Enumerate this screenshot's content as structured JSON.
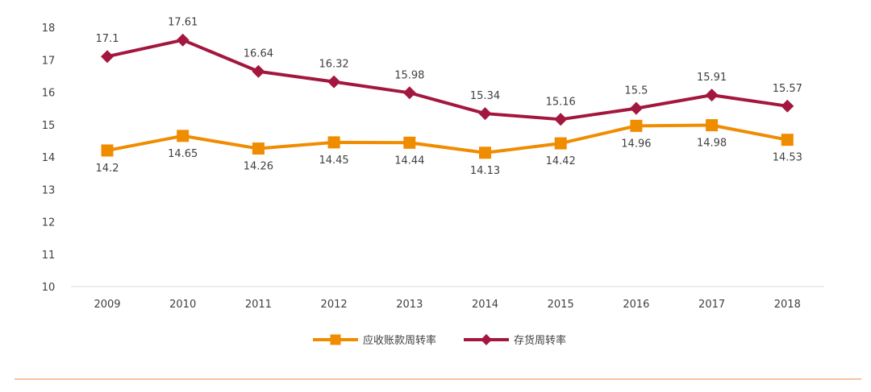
{
  "chart_data": {
    "type": "line",
    "title": "",
    "xlabel": "",
    "ylabel": "",
    "categories": [
      "2009",
      "2010",
      "2011",
      "2012",
      "2013",
      "2014",
      "2015",
      "2016",
      "2017",
      "2018"
    ],
    "ylim": [
      10,
      18
    ],
    "yticks": [
      "10",
      "11",
      "12",
      "13",
      "14",
      "15",
      "16",
      "17",
      "18"
    ],
    "grid": false,
    "legend_position": "bottom-center",
    "series": [
      {
        "name": "应收账款周转率",
        "marker": "square",
        "color": "#f08c00",
        "values": [
          14.2,
          14.65,
          14.26,
          14.45,
          14.44,
          14.13,
          14.42,
          14.96,
          14.98,
          14.53
        ],
        "labels": [
          "14.2",
          "14.65",
          "14.26",
          "14.45",
          "14.44",
          "14.13",
          "14.42",
          "14.96",
          "14.98",
          "14.53"
        ],
        "label_position": "below"
      },
      {
        "name": "存货周转率",
        "marker": "diamond",
        "color": "#a3173e",
        "values": [
          17.1,
          17.61,
          16.64,
          16.32,
          15.98,
          15.34,
          15.16,
          15.5,
          15.91,
          15.57
        ],
        "labels": [
          "17.1",
          "17.61",
          "16.64",
          "16.32",
          "15.98",
          "15.34",
          "15.16",
          "15.5",
          "15.91",
          "15.57"
        ],
        "label_position": "above"
      }
    ]
  },
  "colors": {
    "axis_line": "#d9d9d9",
    "footer_rule": "#f4b183"
  }
}
